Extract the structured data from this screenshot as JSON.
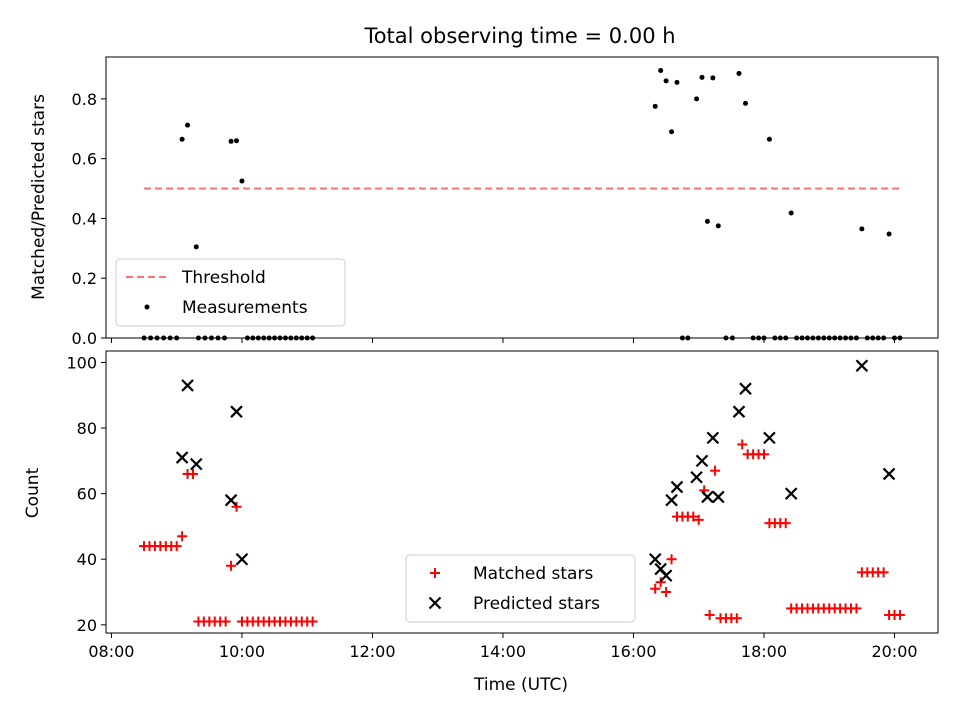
{
  "colors": {
    "threshold": "#ff7070",
    "measurement": "#000000",
    "matched": "#ff0000",
    "predicted": "#000000"
  },
  "chart_data": [
    {
      "type": "scatter",
      "title": "Total observing time = 0.00 h",
      "xlabel": "",
      "ylabel": "Matched/Predicted stars",
      "xlim": [
        "07:55",
        "20:40"
      ],
      "ylim": [
        0,
        0.94
      ],
      "yticks": [
        0.0,
        0.2,
        0.4,
        0.6,
        0.8
      ],
      "ytick_labels": [
        "0.0",
        "0.2",
        "0.4",
        "0.6",
        "0.8"
      ],
      "legend_position": "lower-left",
      "threshold": {
        "name": "Threshold",
        "y": 0.5,
        "x_start": "08:30",
        "x_end": "20:05"
      },
      "series": [
        {
          "name": "Measurements",
          "points": [
            [
              "08:30",
              0
            ],
            [
              "08:36",
              0
            ],
            [
              "08:42",
              0
            ],
            [
              "08:48",
              0
            ],
            [
              "08:54",
              0
            ],
            [
              "09:00",
              0
            ],
            [
              "09:05",
              0.665
            ],
            [
              "09:10",
              0.712
            ],
            [
              "09:20",
              0
            ],
            [
              "09:26",
              0
            ],
            [
              "09:32",
              0
            ],
            [
              "09:38",
              0
            ],
            [
              "09:44",
              0
            ],
            [
              "09:18",
              0.305
            ],
            [
              "09:50",
              0.658
            ],
            [
              "09:55",
              0.66
            ],
            [
              "10:00",
              0.525
            ],
            [
              "10:05",
              0
            ],
            [
              "10:10",
              0
            ],
            [
              "10:15",
              0
            ],
            [
              "10:20",
              0
            ],
            [
              "10:25",
              0
            ],
            [
              "10:30",
              0
            ],
            [
              "10:35",
              0
            ],
            [
              "10:40",
              0
            ],
            [
              "10:45",
              0
            ],
            [
              "10:50",
              0
            ],
            [
              "10:55",
              0
            ],
            [
              "11:00",
              0
            ],
            [
              "11:05",
              0
            ],
            [
              "16:20",
              0.775
            ],
            [
              "16:25",
              0.895
            ],
            [
              "16:30",
              0.86
            ],
            [
              "16:35",
              0.69
            ],
            [
              "16:40",
              0.855
            ],
            [
              "16:45",
              0
            ],
            [
              "16:50",
              0
            ],
            [
              "16:58",
              0.8
            ],
            [
              "17:03",
              0.872
            ],
            [
              "17:08",
              0.39
            ],
            [
              "17:13",
              0.87
            ],
            [
              "17:18",
              0.375
            ],
            [
              "17:25",
              0
            ],
            [
              "17:31",
              0
            ],
            [
              "17:37",
              0.885
            ],
            [
              "17:43",
              0.785
            ],
            [
              "17:50",
              0
            ],
            [
              "17:55",
              0
            ],
            [
              "18:05",
              0.665
            ],
            [
              "18:00",
              0
            ],
            [
              "18:10",
              0
            ],
            [
              "18:15",
              0
            ],
            [
              "18:20",
              0
            ],
            [
              "18:25",
              0.418
            ],
            [
              "18:30",
              0
            ],
            [
              "18:35",
              0
            ],
            [
              "18:40",
              0
            ],
            [
              "18:45",
              0
            ],
            [
              "18:50",
              0
            ],
            [
              "18:55",
              0
            ],
            [
              "19:00",
              0
            ],
            [
              "19:05",
              0
            ],
            [
              "19:10",
              0
            ],
            [
              "19:15",
              0
            ],
            [
              "19:20",
              0
            ],
            [
              "19:25",
              0
            ],
            [
              "19:30",
              0.365
            ],
            [
              "19:35",
              0
            ],
            [
              "19:40",
              0
            ],
            [
              "19:45",
              0
            ],
            [
              "19:50",
              0
            ],
            [
              "19:55",
              0.348
            ],
            [
              "20:00",
              0
            ],
            [
              "20:05",
              0
            ]
          ]
        }
      ]
    },
    {
      "type": "scatter",
      "title": "",
      "xlabel": "Time (UTC)",
      "ylabel": "Count",
      "xlim": [
        "07:55",
        "20:40"
      ],
      "ylim": [
        17.5,
        103.5
      ],
      "xticks": [
        "08:00",
        "10:00",
        "12:00",
        "14:00",
        "16:00",
        "18:00",
        "20:00"
      ],
      "yticks": [
        20,
        40,
        60,
        80,
        100
      ],
      "legend_position": "lower-center",
      "series": [
        {
          "name": "Matched stars",
          "marker": "plus",
          "points": [
            [
              "08:30",
              44
            ],
            [
              "08:35",
              44
            ],
            [
              "08:40",
              44
            ],
            [
              "08:45",
              44
            ],
            [
              "08:50",
              44
            ],
            [
              "08:55",
              44
            ],
            [
              "09:00",
              44
            ],
            [
              "09:05",
              47
            ],
            [
              "09:10",
              66
            ],
            [
              "09:15",
              66
            ],
            [
              "09:20",
              21
            ],
            [
              "09:25",
              21
            ],
            [
              "09:30",
              21
            ],
            [
              "09:35",
              21
            ],
            [
              "09:40",
              21
            ],
            [
              "09:45",
              21
            ],
            [
              "09:50",
              38
            ],
            [
              "09:55",
              56
            ],
            [
              "10:00",
              21
            ],
            [
              "10:05",
              21
            ],
            [
              "10:10",
              21
            ],
            [
              "10:15",
              21
            ],
            [
              "10:20",
              21
            ],
            [
              "10:25",
              21
            ],
            [
              "10:30",
              21
            ],
            [
              "10:35",
              21
            ],
            [
              "10:40",
              21
            ],
            [
              "10:45",
              21
            ],
            [
              "10:50",
              21
            ],
            [
              "10:55",
              21
            ],
            [
              "11:00",
              21
            ],
            [
              "11:05",
              21
            ],
            [
              "16:20",
              31
            ],
            [
              "16:25",
              33
            ],
            [
              "16:30",
              30
            ],
            [
              "16:35",
              40
            ],
            [
              "16:40",
              53
            ],
            [
              "16:45",
              53
            ],
            [
              "16:50",
              53
            ],
            [
              "16:55",
              53
            ],
            [
              "17:00",
              52
            ],
            [
              "17:05",
              61
            ],
            [
              "17:10",
              23
            ],
            [
              "17:15",
              67
            ],
            [
              "17:20",
              22
            ],
            [
              "17:25",
              22
            ],
            [
              "17:30",
              22
            ],
            [
              "17:35",
              22
            ],
            [
              "17:40",
              75
            ],
            [
              "17:45",
              72
            ],
            [
              "17:50",
              72
            ],
            [
              "17:55",
              72
            ],
            [
              "18:00",
              72
            ],
            [
              "18:05",
              51
            ],
            [
              "18:10",
              51
            ],
            [
              "18:15",
              51
            ],
            [
              "18:20",
              51
            ],
            [
              "18:25",
              25
            ],
            [
              "18:30",
              25
            ],
            [
              "18:35",
              25
            ],
            [
              "18:40",
              25
            ],
            [
              "18:45",
              25
            ],
            [
              "18:50",
              25
            ],
            [
              "18:55",
              25
            ],
            [
              "19:00",
              25
            ],
            [
              "19:05",
              25
            ],
            [
              "19:10",
              25
            ],
            [
              "19:15",
              25
            ],
            [
              "19:20",
              25
            ],
            [
              "19:25",
              25
            ],
            [
              "19:30",
              36
            ],
            [
              "19:35",
              36
            ],
            [
              "19:40",
              36
            ],
            [
              "19:45",
              36
            ],
            [
              "19:50",
              36
            ],
            [
              "19:55",
              23
            ],
            [
              "20:00",
              23
            ],
            [
              "20:05",
              23
            ]
          ]
        },
        {
          "name": "Predicted stars",
          "marker": "x",
          "points": [
            [
              "09:05",
              71
            ],
            [
              "09:10",
              93
            ],
            [
              "09:18",
              69
            ],
            [
              "09:50",
              58
            ],
            [
              "09:55",
              85
            ],
            [
              "10:00",
              40
            ],
            [
              "16:20",
              40
            ],
            [
              "16:25",
              37
            ],
            [
              "16:30",
              35
            ],
            [
              "16:35",
              58
            ],
            [
              "16:40",
              62
            ],
            [
              "16:58",
              65
            ],
            [
              "17:03",
              70
            ],
            [
              "17:08",
              59
            ],
            [
              "17:13",
              77
            ],
            [
              "17:18",
              59
            ],
            [
              "17:37",
              85
            ],
            [
              "17:43",
              92
            ],
            [
              "18:05",
              77
            ],
            [
              "18:25",
              60
            ],
            [
              "19:30",
              99
            ],
            [
              "19:55",
              66
            ]
          ]
        }
      ]
    }
  ]
}
